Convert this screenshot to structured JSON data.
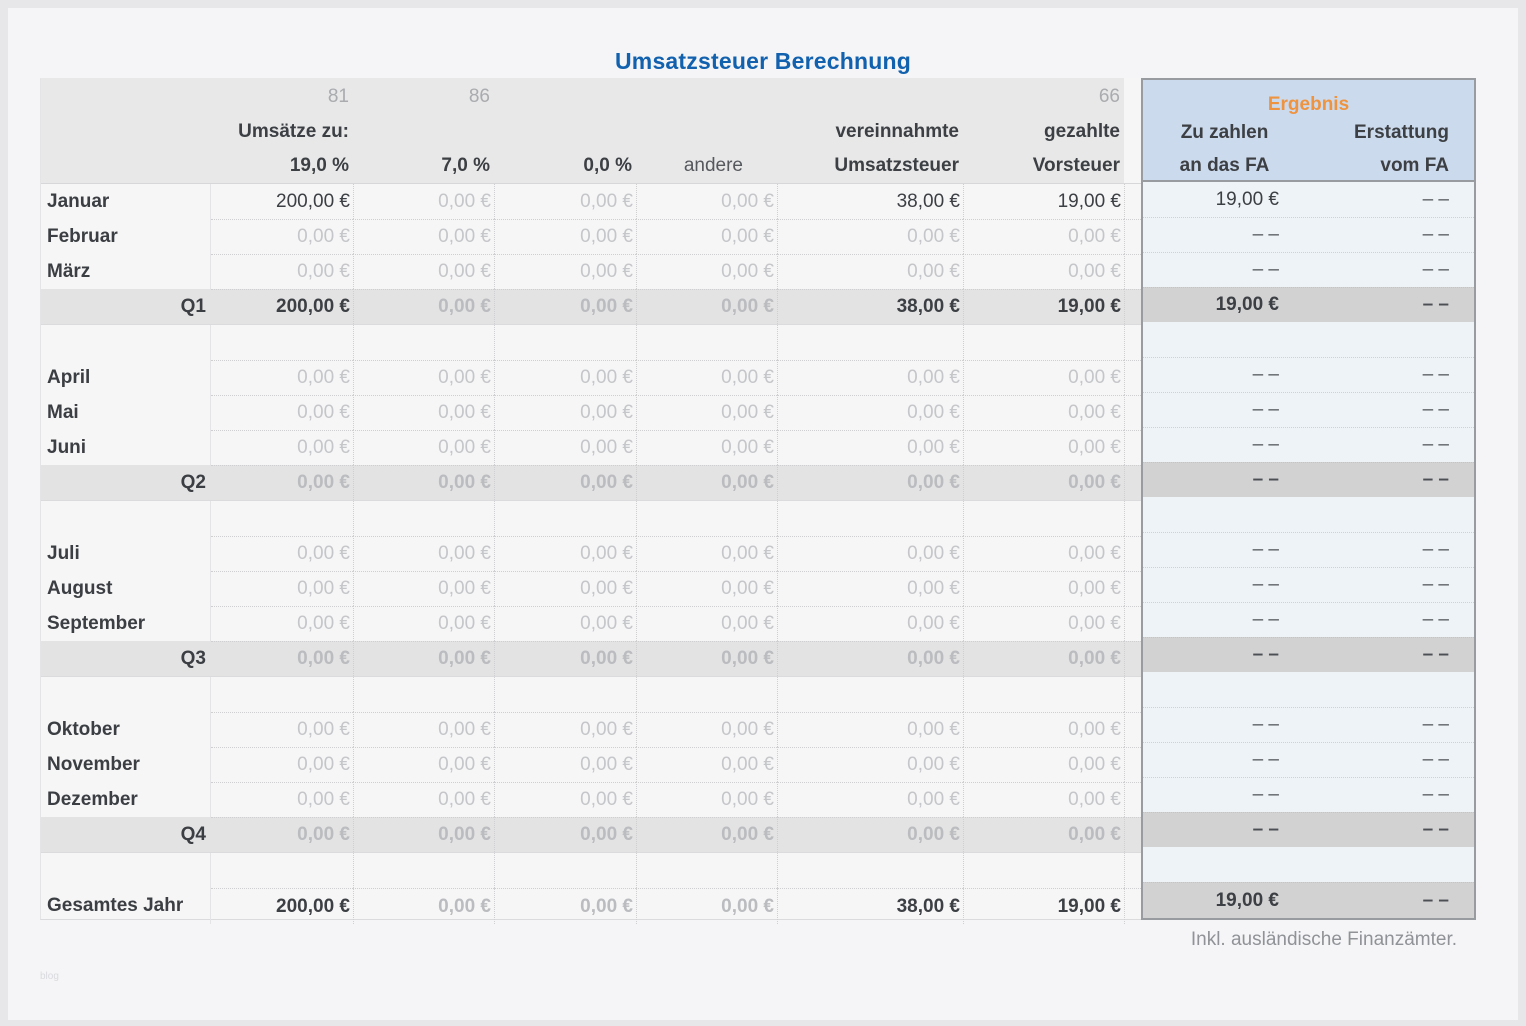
{
  "title": "Umsatzsteuer Berechnung",
  "footer_note": "Inkl. ausländische Finanzämter.",
  "watermark": "blog",
  "colors": {
    "title_blue": "#1161ae",
    "ergebnis_orange": "#ee9440",
    "header_grey": "#e8e8e9",
    "quarter_row_grey": "#e3e3e4",
    "ergebnis_header_blue": "#ccdaed",
    "ergebnis_body_blue": "#edf3f6",
    "ergebnis_total_grey": "#d2d2d3",
    "value_dark": "#3c3f43",
    "value_zero_grey": "#c5c6c9"
  },
  "header": {
    "codes": {
      "umsatz19": "81",
      "umsatz7": "86",
      "vorsteuer": "66"
    },
    "umsaetze_label": "Umsätze zu:",
    "rate19": "19,0 %",
    "rate7": "7,0 %",
    "rate0": "0,0 %",
    "andere": "andere",
    "vereinnahmte": [
      "vereinnahmte",
      "Umsatzsteuer"
    ],
    "gezahlte": [
      "gezahlte",
      "Vorsteuer"
    ],
    "ergebnis": "Ergebnis",
    "zu_zahlen": [
      "Zu zahlen",
      "an das FA"
    ],
    "erstattung": [
      "Erstattung",
      "vom FA"
    ]
  },
  "rows": [
    {
      "type": "month",
      "label": "Januar",
      "values": [
        "200,00 €",
        "0,00 €",
        "0,00 €",
        "0,00 €",
        "38,00 €",
        "19,00 €"
      ],
      "zu_zahlen": "19,00 €",
      "erstattung": "– –"
    },
    {
      "type": "month",
      "label": "Februar",
      "values": [
        "0,00 €",
        "0,00 €",
        "0,00 €",
        "0,00 €",
        "0,00 €",
        "0,00 €"
      ],
      "zu_zahlen": "– –",
      "erstattung": "– –"
    },
    {
      "type": "month",
      "label": "März",
      "values": [
        "0,00 €",
        "0,00 €",
        "0,00 €",
        "0,00 €",
        "0,00 €",
        "0,00 €"
      ],
      "zu_zahlen": "– –",
      "erstattung": "– –"
    },
    {
      "type": "quarter",
      "label": "Q1",
      "values": [
        "200,00 €",
        "0,00 €",
        "0,00 €",
        "0,00 €",
        "38,00 €",
        "19,00 €"
      ],
      "zu_zahlen": "19,00 €",
      "erstattung": "– –"
    },
    {
      "type": "spacer"
    },
    {
      "type": "month",
      "label": "April",
      "values": [
        "0,00 €",
        "0,00 €",
        "0,00 €",
        "0,00 €",
        "0,00 €",
        "0,00 €"
      ],
      "zu_zahlen": "– –",
      "erstattung": "– –"
    },
    {
      "type": "month",
      "label": "Mai",
      "values": [
        "0,00 €",
        "0,00 €",
        "0,00 €",
        "0,00 €",
        "0,00 €",
        "0,00 €"
      ],
      "zu_zahlen": "– –",
      "erstattung": "– –"
    },
    {
      "type": "month",
      "label": "Juni",
      "values": [
        "0,00 €",
        "0,00 €",
        "0,00 €",
        "0,00 €",
        "0,00 €",
        "0,00 €"
      ],
      "zu_zahlen": "– –",
      "erstattung": "– –"
    },
    {
      "type": "quarter",
      "label": "Q2",
      "values": [
        "0,00 €",
        "0,00 €",
        "0,00 €",
        "0,00 €",
        "0,00 €",
        "0,00 €"
      ],
      "zu_zahlen": "– –",
      "erstattung": "– –"
    },
    {
      "type": "spacer"
    },
    {
      "type": "month",
      "label": "Juli",
      "values": [
        "0,00 €",
        "0,00 €",
        "0,00 €",
        "0,00 €",
        "0,00 €",
        "0,00 €"
      ],
      "zu_zahlen": "– –",
      "erstattung": "– –"
    },
    {
      "type": "month",
      "label": "August",
      "values": [
        "0,00 €",
        "0,00 €",
        "0,00 €",
        "0,00 €",
        "0,00 €",
        "0,00 €"
      ],
      "zu_zahlen": "– –",
      "erstattung": "– –"
    },
    {
      "type": "month",
      "label": "September",
      "values": [
        "0,00 €",
        "0,00 €",
        "0,00 €",
        "0,00 €",
        "0,00 €",
        "0,00 €"
      ],
      "zu_zahlen": "– –",
      "erstattung": "– –"
    },
    {
      "type": "quarter",
      "label": "Q3",
      "values": [
        "0,00 €",
        "0,00 €",
        "0,00 €",
        "0,00 €",
        "0,00 €",
        "0,00 €"
      ],
      "zu_zahlen": "– –",
      "erstattung": "– –"
    },
    {
      "type": "spacer"
    },
    {
      "type": "month",
      "label": "Oktober",
      "values": [
        "0,00 €",
        "0,00 €",
        "0,00 €",
        "0,00 €",
        "0,00 €",
        "0,00 €"
      ],
      "zu_zahlen": "– –",
      "erstattung": "– –"
    },
    {
      "type": "month",
      "label": "November",
      "values": [
        "0,00 €",
        "0,00 €",
        "0,00 €",
        "0,00 €",
        "0,00 €",
        "0,00 €"
      ],
      "zu_zahlen": "– –",
      "erstattung": "– –"
    },
    {
      "type": "month",
      "label": "Dezember",
      "values": [
        "0,00 €",
        "0,00 €",
        "0,00 €",
        "0,00 €",
        "0,00 €",
        "0,00 €"
      ],
      "zu_zahlen": "– –",
      "erstattung": "– –"
    },
    {
      "type": "quarter",
      "label": "Q4",
      "values": [
        "0,00 €",
        "0,00 €",
        "0,00 €",
        "0,00 €",
        "0,00 €",
        "0,00 €"
      ],
      "zu_zahlen": "– –",
      "erstattung": "– –"
    },
    {
      "type": "spacer"
    },
    {
      "type": "year",
      "label": "Gesamtes Jahr",
      "values": [
        "200,00 €",
        "0,00 €",
        "0,00 €",
        "0,00 €",
        "38,00 €",
        "19,00 €"
      ],
      "zu_zahlen": "19,00 €",
      "erstattung": "– –"
    }
  ]
}
